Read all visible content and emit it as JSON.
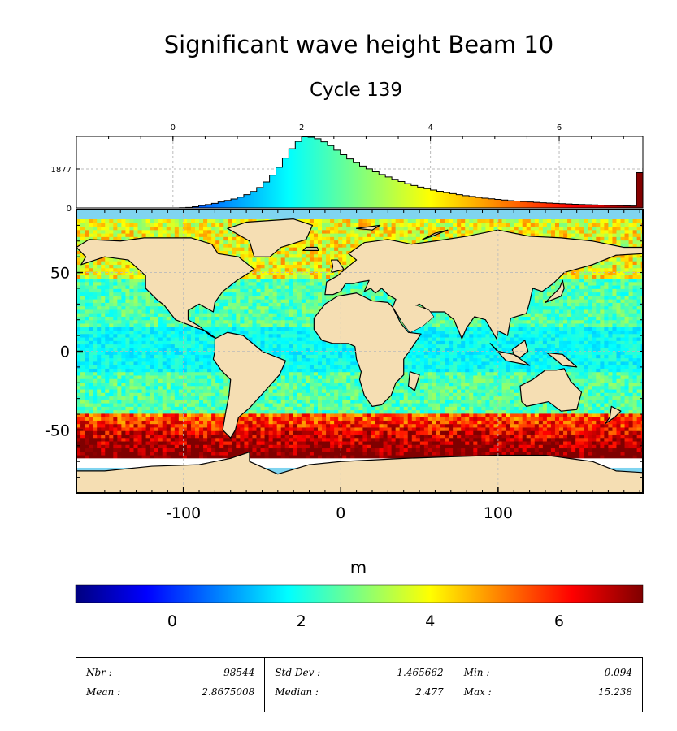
{
  "chart_data": [
    {
      "type": "bar",
      "title": "Significant wave height Beam 10",
      "subtitle": "Cycle 139",
      "xlim": [
        -1.5,
        7.3
      ],
      "xticks": [
        "0",
        "2",
        "4",
        "6"
      ],
      "xtick_values": [
        0,
        2,
        4,
        6
      ],
      "ylim": [
        0,
        3440
      ],
      "yticks": [
        "0",
        "1877"
      ],
      "ytick_values": [
        0,
        1877
      ],
      "grid": true,
      "bins": [
        {
          "x": 0.2,
          "v": 10
        },
        {
          "x": 0.3,
          "v": 25
        },
        {
          "x": 0.4,
          "v": 60
        },
        {
          "x": 0.5,
          "v": 110
        },
        {
          "x": 0.6,
          "v": 160
        },
        {
          "x": 0.7,
          "v": 220
        },
        {
          "x": 0.8,
          "v": 290
        },
        {
          "x": 0.9,
          "v": 360
        },
        {
          "x": 1.0,
          "v": 430
        },
        {
          "x": 1.1,
          "v": 520
        },
        {
          "x": 1.2,
          "v": 640
        },
        {
          "x": 1.3,
          "v": 790
        },
        {
          "x": 1.4,
          "v": 980
        },
        {
          "x": 1.5,
          "v": 1250
        },
        {
          "x": 1.6,
          "v": 1580
        },
        {
          "x": 1.7,
          "v": 1960
        },
        {
          "x": 1.8,
          "v": 2400
        },
        {
          "x": 1.9,
          "v": 2850
        },
        {
          "x": 2.0,
          "v": 3200
        },
        {
          "x": 2.1,
          "v": 3420
        },
        {
          "x": 2.2,
          "v": 3400
        },
        {
          "x": 2.3,
          "v": 3330
        },
        {
          "x": 2.4,
          "v": 3180
        },
        {
          "x": 2.5,
          "v": 3000
        },
        {
          "x": 2.6,
          "v": 2780
        },
        {
          "x": 2.7,
          "v": 2560
        },
        {
          "x": 2.8,
          "v": 2360
        },
        {
          "x": 2.9,
          "v": 2180
        },
        {
          "x": 3.0,
          "v": 2020
        },
        {
          "x": 3.1,
          "v": 1880
        },
        {
          "x": 3.2,
          "v": 1740
        },
        {
          "x": 3.3,
          "v": 1610
        },
        {
          "x": 3.4,
          "v": 1490
        },
        {
          "x": 3.5,
          "v": 1380
        },
        {
          "x": 3.6,
          "v": 1270
        },
        {
          "x": 3.7,
          "v": 1170
        },
        {
          "x": 3.8,
          "v": 1080
        },
        {
          "x": 3.9,
          "v": 1000
        },
        {
          "x": 4.0,
          "v": 930
        },
        {
          "x": 4.1,
          "v": 860
        },
        {
          "x": 4.2,
          "v": 800
        },
        {
          "x": 4.3,
          "v": 740
        },
        {
          "x": 4.4,
          "v": 690
        },
        {
          "x": 4.5,
          "v": 640
        },
        {
          "x": 4.6,
          "v": 590
        },
        {
          "x": 4.7,
          "v": 550
        },
        {
          "x": 4.8,
          "v": 510
        },
        {
          "x": 4.9,
          "v": 470
        },
        {
          "x": 5.0,
          "v": 440
        },
        {
          "x": 5.1,
          "v": 410
        },
        {
          "x": 5.2,
          "v": 380
        },
        {
          "x": 5.3,
          "v": 350
        },
        {
          "x": 5.4,
          "v": 330
        },
        {
          "x": 5.5,
          "v": 310
        },
        {
          "x": 5.6,
          "v": 290
        },
        {
          "x": 5.7,
          "v": 270
        },
        {
          "x": 5.8,
          "v": 250
        },
        {
          "x": 5.9,
          "v": 235
        },
        {
          "x": 6.0,
          "v": 220
        },
        {
          "x": 6.1,
          "v": 205
        },
        {
          "x": 6.2,
          "v": 190
        },
        {
          "x": 6.3,
          "v": 178
        },
        {
          "x": 6.4,
          "v": 166
        },
        {
          "x": 6.5,
          "v": 155
        },
        {
          "x": 6.6,
          "v": 145
        },
        {
          "x": 6.7,
          "v": 135
        },
        {
          "x": 6.8,
          "v": 125
        },
        {
          "x": 6.9,
          "v": 117
        },
        {
          "x": 7.0,
          "v": 110
        },
        {
          "x": 7.1,
          "v": 102
        },
        {
          "x": 7.2,
          "v": 95
        },
        {
          "x": 7.3,
          "v": 1700
        }
      ]
    },
    {
      "type": "heatmap",
      "xlim": [
        -168,
        192
      ],
      "ylim": [
        -90,
        90
      ],
      "xticks": [
        "-100",
        "0",
        "100"
      ],
      "xtick_values": [
        -100,
        0,
        100
      ],
      "yticks": [
        "50",
        "0",
        "-50"
      ],
      "ytick_values": [
        50,
        0,
        -50
      ],
      "grid": true,
      "land_color": "#f5deb3"
    },
    {
      "type": "colorbar",
      "label": "m",
      "range": [
        -1.5,
        7.3
      ],
      "ticks": [
        "0",
        "2",
        "4",
        "6"
      ],
      "tick_values": [
        0,
        2,
        4,
        6
      ],
      "colormap": [
        "#00007f",
        "#0000ff",
        "#007fff",
        "#00ffff",
        "#7fff7f",
        "#ffff00",
        "#ff7f00",
        "#ff0000",
        "#7f0000"
      ]
    }
  ],
  "stats": {
    "nbr_label": "Nbr :",
    "nbr": "98544",
    "mean_label": "Mean :",
    "mean": "2.8675008",
    "std_label": "Std Dev :",
    "std": "1.465662",
    "median_label": "Median :",
    "median": "2.477",
    "min_label": "Min :",
    "min": "0.094",
    "max_label": "Max :",
    "max": "15.238"
  }
}
